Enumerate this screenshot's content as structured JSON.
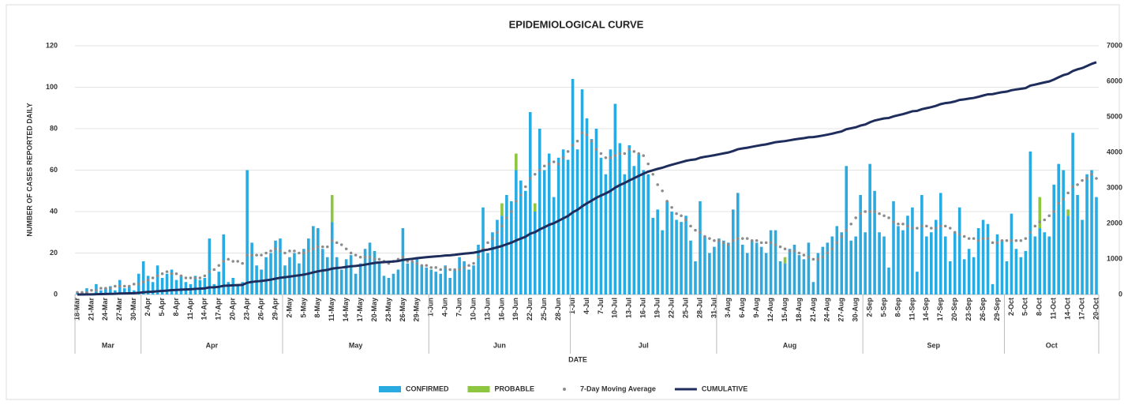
{
  "chart_data": {
    "type": "bar",
    "title": "EPIDEMIOLOGICAL CURVE",
    "x_label": "DATE",
    "y_label": "NUMBER OF CASES REPORTED DAILY",
    "categories": [
      "18-Mar",
      null,
      null,
      "21-Mar",
      null,
      null,
      "24-Mar",
      null,
      null,
      "27-Mar",
      null,
      null,
      "30-Mar",
      null,
      null,
      "2-Apr",
      null,
      null,
      "5-Apr",
      null,
      null,
      "8-Apr",
      null,
      null,
      "11-Apr",
      null,
      null,
      "14-Apr",
      null,
      null,
      "17-Apr",
      null,
      null,
      "20-Apr",
      null,
      null,
      "23-Apr",
      null,
      null,
      "26-Apr",
      null,
      null,
      "29-Apr",
      null,
      null,
      "2-May",
      null,
      null,
      "5-May",
      null,
      null,
      "8-May",
      null,
      null,
      "11-May",
      null,
      null,
      "14-May",
      null,
      null,
      "17-May",
      null,
      null,
      "20-May",
      null,
      null,
      "23-May",
      null,
      null,
      "26-May",
      null,
      null,
      "29-May",
      null,
      null,
      "1-Jun",
      null,
      null,
      "4-Jun",
      null,
      null,
      "7-Jun",
      null,
      null,
      "10-Jun",
      null,
      null,
      "13-Jun",
      null,
      null,
      "16-Jun",
      null,
      null,
      "19-Jun",
      null,
      null,
      "22-Jun",
      null,
      null,
      "25-Jun",
      null,
      null,
      "28-Jun",
      null,
      null,
      "1-Jul",
      null,
      null,
      "4-Jul",
      null,
      null,
      "7-Jul",
      null,
      null,
      "10-Jul",
      null,
      null,
      "13-Jul",
      null,
      null,
      "16-Jul",
      null,
      null,
      "19-Jul",
      null,
      null,
      "22-Jul",
      null,
      null,
      "25-Jul",
      null,
      null,
      "28-Jul",
      null,
      null,
      "31-Jul",
      null,
      null,
      "3-Aug",
      null,
      null,
      "6-Aug",
      null,
      null,
      "9-Aug",
      null,
      null,
      "12-Aug",
      null,
      null,
      "15-Aug",
      null,
      null,
      "18-Aug",
      null,
      null,
      "21-Aug",
      null,
      null,
      "24-Aug",
      null,
      null,
      "27-Aug",
      null,
      null,
      "30-Aug",
      null,
      null,
      "2-Sep",
      null,
      null,
      "5-Sep",
      null,
      null,
      "8-Sep",
      null,
      null,
      "11-Sep",
      null,
      null,
      "14-Sep",
      null,
      null,
      "17-Sep",
      null,
      null,
      "20-Sep",
      null,
      null,
      "23-Sep",
      null,
      null,
      "26-Sep",
      null,
      null,
      "29-Sep",
      null,
      null,
      "2-Oct",
      null,
      null,
      "5-Oct",
      null,
      null,
      "8-Oct",
      null,
      null,
      "11-Oct",
      null,
      null,
      "14-Oct",
      null,
      null,
      "17-Oct",
      null,
      null,
      "20-Oct"
    ],
    "months": [
      "Mar",
      "Apr",
      "May",
      "Jun",
      "Jul",
      "Aug",
      "Sep",
      "Oct"
    ],
    "ylim": [
      0,
      120
    ],
    "yticks": [
      0,
      20,
      40,
      60,
      80,
      100,
      120
    ],
    "y2lim": [
      0,
      7000
    ],
    "y2ticks": [
      0,
      1000,
      2000,
      3000,
      4000,
      5000,
      6000,
      7000
    ],
    "grid": true,
    "series": [
      {
        "name": "CONFIRMED",
        "type": "bar",
        "color": "#29abe2",
        "values": [
          1,
          0,
          3,
          0,
          5,
          2,
          3,
          4,
          2,
          7,
          3,
          4,
          2,
          10,
          16,
          9,
          6,
          14,
          8,
          10,
          12,
          7,
          9,
          6,
          5,
          9,
          7,
          8,
          27,
          5,
          11,
          29,
          6,
          8,
          5,
          6,
          60,
          25,
          14,
          12,
          18,
          20,
          26,
          27,
          14,
          18,
          20,
          15,
          22,
          27,
          33,
          32,
          22,
          18,
          35,
          18,
          12,
          17,
          19,
          10,
          15,
          22,
          25,
          21,
          16,
          9,
          8,
          10,
          12,
          32,
          15,
          16,
          18,
          14,
          13,
          12,
          11,
          10,
          14,
          8,
          12,
          18,
          16,
          12,
          14,
          24,
          42,
          20,
          30,
          36,
          38,
          48,
          45,
          60,
          55,
          50,
          88,
          40,
          80,
          60,
          68,
          47,
          66,
          70,
          65,
          104,
          70,
          99,
          85,
          75,
          80,
          66,
          58,
          70,
          92,
          73,
          58,
          72,
          62,
          68,
          60,
          58,
          37,
          41,
          31,
          45,
          40,
          36,
          35,
          38,
          26,
          16,
          45,
          28,
          20,
          23,
          27,
          26,
          25,
          41,
          49,
          24,
          20,
          26,
          25,
          23,
          20,
          31,
          31,
          16,
          15,
          22,
          24,
          19,
          17,
          25,
          6,
          20,
          23,
          25,
          28,
          33,
          30,
          62,
          26,
          28,
          48,
          30,
          63,
          50,
          30,
          28,
          13,
          45,
          33,
          31,
          38,
          42,
          11,
          48,
          28,
          30,
          36,
          49,
          28,
          16,
          30,
          42,
          17,
          22,
          18,
          32,
          36,
          34,
          5,
          29,
          26,
          16,
          39,
          22,
          18,
          21,
          69,
          28,
          32,
          30,
          28,
          53,
          63,
          60,
          38,
          78,
          48,
          36,
          58,
          60,
          47
        ]
      },
      {
        "name": "PROBABLE",
        "type": "bar",
        "color": "#8dc63f",
        "values": [
          0,
          0,
          0,
          0,
          0,
          0,
          0,
          0,
          0,
          0,
          0,
          0,
          0,
          0,
          0,
          0,
          0,
          0,
          0,
          0,
          0,
          0,
          0,
          0,
          0,
          0,
          0,
          0,
          0,
          0,
          0,
          0,
          0,
          0,
          0,
          0,
          0,
          0,
          0,
          0,
          0,
          0,
          0,
          0,
          0,
          0,
          0,
          0,
          0,
          0,
          0,
          0,
          0,
          0,
          13,
          0,
          0,
          0,
          0,
          0,
          0,
          0,
          0,
          0,
          0,
          0,
          0,
          0,
          0,
          0,
          0,
          0,
          0,
          0,
          0,
          0,
          0,
          0,
          0,
          0,
          0,
          0,
          0,
          0,
          0,
          0,
          0,
          0,
          0,
          0,
          6,
          0,
          0,
          8,
          0,
          0,
          0,
          4,
          0,
          0,
          0,
          0,
          0,
          0,
          0,
          0,
          0,
          0,
          0,
          0,
          0,
          0,
          0,
          0,
          0,
          0,
          0,
          0,
          0,
          0,
          0,
          0,
          0,
          0,
          0,
          0,
          0,
          0,
          0,
          0,
          0,
          0,
          0,
          0,
          0,
          0,
          0,
          0,
          0,
          0,
          0,
          0,
          0,
          0,
          0,
          0,
          0,
          0,
          0,
          0,
          3,
          0,
          0,
          0,
          0,
          0,
          0,
          0,
          0,
          0,
          0,
          0,
          0,
          0,
          0,
          0,
          0,
          0,
          0,
          0,
          0,
          0,
          0,
          0,
          0,
          0,
          0,
          0,
          0,
          0,
          0,
          0,
          0,
          0,
          0,
          0,
          0,
          0,
          0,
          0,
          0,
          0,
          0,
          0,
          0,
          0,
          0,
          0,
          0,
          0,
          0,
          0,
          0,
          0,
          15,
          0,
          0,
          0,
          0,
          0,
          3,
          0,
          0,
          0,
          0,
          0,
          0
        ]
      },
      {
        "name": "7-Day Moving Average",
        "type": "scatter",
        "color": "#8c8c8c",
        "values": [
          1,
          1,
          1,
          2,
          2,
          3,
          3,
          3,
          4,
          4,
          4,
          4,
          5,
          5,
          6,
          7,
          8,
          9,
          10,
          11,
          10,
          10,
          9,
          8,
          8,
          8,
          8,
          9,
          11,
          12,
          14,
          16,
          17,
          16,
          16,
          15,
          19,
          19,
          19,
          19,
          20,
          21,
          22,
          21,
          20,
          21,
          21,
          20,
          20,
          21,
          22,
          23,
          23,
          23,
          26,
          25,
          24,
          22,
          20,
          19,
          18,
          18,
          18,
          17,
          17,
          16,
          15,
          16,
          17,
          18,
          16,
          16,
          15,
          14,
          14,
          13,
          13,
          12,
          13,
          12,
          12,
          12,
          13,
          14,
          15,
          18,
          22,
          25,
          27,
          30,
          33,
          37,
          40,
          45,
          48,
          52,
          56,
          58,
          60,
          62,
          63,
          64,
          63,
          66,
          69,
          72,
          74,
          78,
          77,
          74,
          70,
          68,
          66,
          66,
          67,
          68,
          68,
          70,
          69,
          68,
          67,
          63,
          58,
          53,
          50,
          45,
          42,
          39,
          38,
          36,
          33,
          31,
          30,
          28,
          27,
          26,
          26,
          25,
          24,
          26,
          27,
          27,
          27,
          26,
          26,
          25,
          25,
          25,
          24,
          23,
          22,
          21,
          21,
          20,
          19,
          18,
          17,
          17,
          18,
          20,
          22,
          25,
          28,
          31,
          34,
          37,
          39,
          40,
          40,
          40,
          39,
          38,
          37,
          35,
          34,
          34,
          33,
          32,
          32,
          33,
          33,
          32,
          32,
          33,
          33,
          32,
          30,
          29,
          28,
          27,
          27,
          26,
          27,
          27,
          25,
          25,
          26,
          26,
          26,
          26,
          26,
          27,
          30,
          33,
          35,
          36,
          38,
          40,
          44,
          46,
          49,
          52,
          53,
          55,
          56,
          58,
          56
        ]
      },
      {
        "name": "CUMULATIVE",
        "type": "line",
        "axis": "y2",
        "color": "#1f2d5c",
        "values": [
          1,
          1,
          4,
          4,
          9,
          11,
          14,
          18,
          20,
          27,
          30,
          34,
          36,
          46,
          62,
          71,
          77,
          91,
          99,
          109,
          121,
          128,
          137,
          143,
          148,
          157,
          164,
          172,
          199,
          204,
          215,
          244,
          250,
          258,
          263,
          269,
          329,
          354,
          368,
          380,
          398,
          418,
          444,
          471,
          485,
          503,
          523,
          538,
          560,
          587,
          620,
          652,
          674,
          692,
          727,
          745,
          757,
          774,
          793,
          803,
          818,
          840,
          865,
          886,
          902,
          911,
          919,
          929,
          941,
          973,
          988,
          1004,
          1022,
          1036,
          1049,
          1061,
          1072,
          1082,
          1096,
          1104,
          1116,
          1134,
          1150,
          1162,
          1176,
          1200,
          1242,
          1262,
          1292,
          1328,
          1366,
          1414,
          1459,
          1519,
          1574,
          1624,
          1712,
          1752,
          1832,
          1892,
          1960,
          2007,
          2073,
          2143,
          2208,
          2312,
          2382,
          2481,
          2566,
          2641,
          2721,
          2787,
          2845,
          2915,
          3007,
          3080,
          3138,
          3210,
          3272,
          3340,
          3400,
          3458,
          3495,
          3536,
          3567,
          3612,
          3652,
          3688,
          3723,
          3761,
          3787,
          3803,
          3848,
          3876,
          3896,
          3919,
          3946,
          3972,
          3997,
          4038,
          4087,
          4111,
          4131,
          4157,
          4182,
          4205,
          4225,
          4256,
          4287,
          4303,
          4318,
          4340,
          4364,
          4383,
          4400,
          4425,
          4431,
          4451,
          4474,
          4499,
          4527,
          4560,
          4590,
          4652,
          4678,
          4706,
          4754,
          4784,
          4847,
          4897,
          4927,
          4955,
          4968,
          5013,
          5046,
          5077,
          5115,
          5157,
          5168,
          5216,
          5244,
          5274,
          5310,
          5359,
          5387,
          5403,
          5433,
          5475,
          5492,
          5514,
          5532,
          5564,
          5600,
          5634,
          5639,
          5668,
          5694,
          5710,
          5749,
          5771,
          5789,
          5810,
          5879,
          5907,
          5939,
          5969,
          5997,
          6050,
          6113,
          6173,
          6211,
          6289,
          6337,
          6373,
          6431,
          6491,
          6538
        ]
      }
    ]
  }
}
